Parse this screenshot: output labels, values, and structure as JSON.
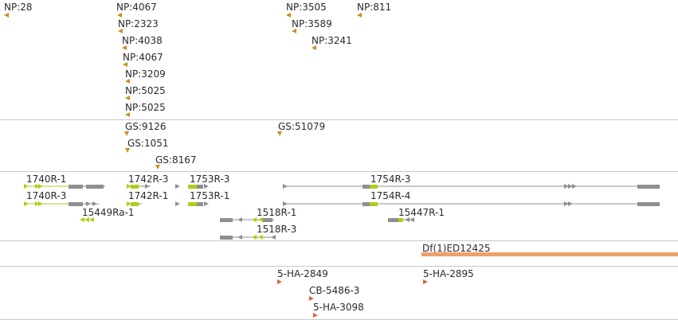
{
  "np_track": {
    "labels": [
      "NP:28",
      "NP:4067",
      "NP:2323",
      "NP:4038",
      "NP:4067",
      "NP:3209",
      "NP:5025",
      "NP:5025",
      "NP:3505",
      "NP:3589",
      "NP:3241",
      "NP:811"
    ]
  },
  "gs_track": {
    "labels": [
      "GS:9126",
      "GS:1051",
      "GS:8167",
      "GS:51079"
    ]
  },
  "gene_track": {
    "labels": [
      "1740R-1",
      "1740R-3",
      "15449Ra-1",
      "1742R-3",
      "1742R-1",
      "1753R-3",
      "1753R-1",
      "1518R-1",
      "1518R-3",
      "1754R-3",
      "1754R-4",
      "15447R-1"
    ]
  },
  "deficiency_track": {
    "label": "Df(1)ED12425"
  },
  "ha_track": {
    "labels": [
      "5-HA-2849",
      "CB-5486-3",
      "5-HA-3098",
      "5-HA-2895"
    ]
  },
  "colors": {
    "np_marker": "#c8901e",
    "ha_marker": "#e2603a",
    "gene_gray": "#8f8f8f",
    "gene_green": "#b3cc1a",
    "deficiency_bar": "#eea06c"
  }
}
